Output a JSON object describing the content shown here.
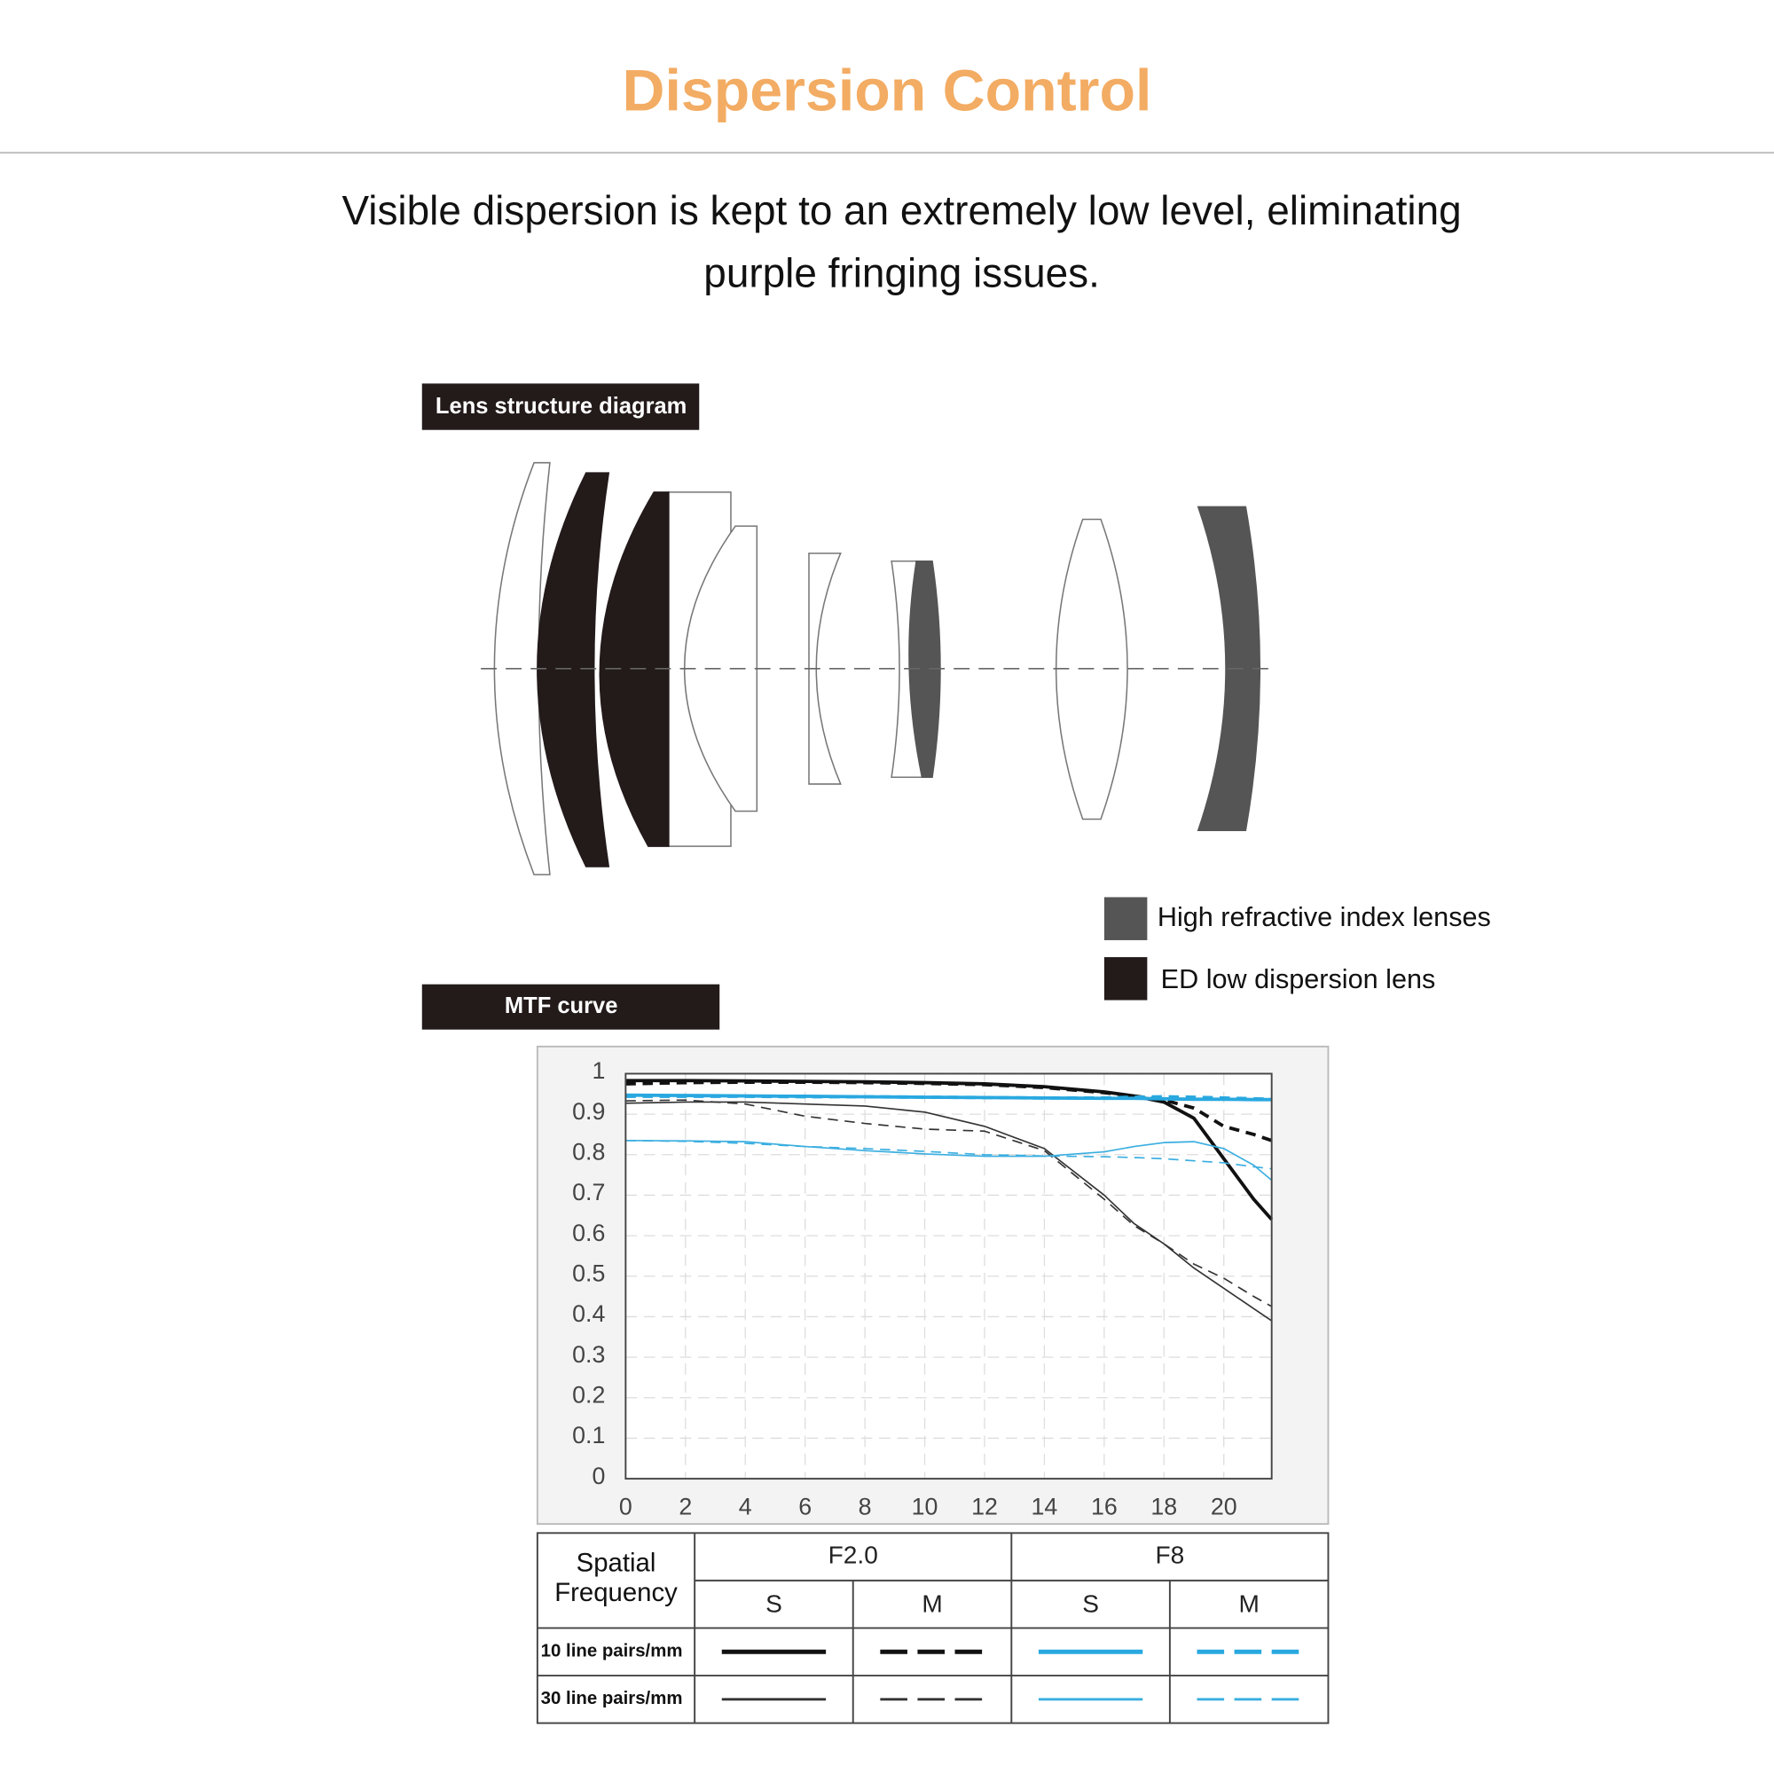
{
  "header": {
    "title": "Dispersion Control",
    "subtitle_lines": [
      "Visible dispersion is kept to an extremely low level, eliminating",
      "purple fringing issues."
    ]
  },
  "lens_diagram": {
    "label": "Lens structure diagram",
    "legend": [
      {
        "label": "High refractive index lenses",
        "color": "#555555"
      },
      {
        "label": "ED low dispersion lens",
        "color": "#231a1a"
      }
    ]
  },
  "mtf_label": "MTF curve",
  "chart_data": {
    "type": "line",
    "x": [
      0,
      2,
      4,
      6,
      8,
      10,
      12,
      14,
      16,
      17,
      18,
      19,
      20,
      21,
      21.6
    ],
    "xlim": [
      0,
      21.6
    ],
    "xticks": [
      0,
      2,
      4,
      6,
      8,
      10,
      12,
      14,
      16,
      18,
      20
    ],
    "ylim": [
      0,
      1
    ],
    "yticks": [
      0,
      0.1,
      0.2,
      0.3,
      0.4,
      0.5,
      0.6,
      0.7,
      0.8,
      0.9,
      1
    ],
    "grid": true,
    "series": [
      {
        "color": "#111111",
        "dash": false,
        "width": 3,
        "values": [
          0.983,
          0.983,
          0.982,
          0.981,
          0.98,
          0.978,
          0.975,
          0.968,
          0.955,
          0.945,
          0.93,
          0.89,
          0.79,
          0.69,
          0.64
        ]
      },
      {
        "color": "#111111",
        "dash": true,
        "width": 3,
        "values": [
          0.975,
          0.978,
          0.979,
          0.979,
          0.978,
          0.976,
          0.973,
          0.966,
          0.953,
          0.945,
          0.935,
          0.915,
          0.87,
          0.85,
          0.835
        ]
      },
      {
        "color": "#29a8e0",
        "dash": false,
        "width": 3,
        "values": [
          0.947,
          0.946,
          0.945,
          0.944,
          0.943,
          0.942,
          0.941,
          0.94,
          0.939,
          0.939,
          0.938,
          0.937,
          0.937,
          0.936,
          0.936
        ]
      },
      {
        "color": "#29a8e0",
        "dash": true,
        "width": 3,
        "values": [
          0.944,
          0.944,
          0.944,
          0.943,
          0.943,
          0.942,
          0.941,
          0.94,
          0.94,
          0.942,
          0.943,
          0.942,
          0.94,
          0.938,
          0.937
        ]
      },
      {
        "color": "#333333",
        "dash": false,
        "width": 1.3,
        "values": [
          0.927,
          0.93,
          0.93,
          0.925,
          0.92,
          0.905,
          0.87,
          0.815,
          0.7,
          0.63,
          0.58,
          0.52,
          0.47,
          0.42,
          0.39
        ]
      },
      {
        "color": "#333333",
        "dash": true,
        "width": 1.3,
        "values": [
          0.933,
          0.935,
          0.925,
          0.895,
          0.877,
          0.863,
          0.858,
          0.81,
          0.69,
          0.625,
          0.58,
          0.53,
          0.495,
          0.45,
          0.425
        ]
      },
      {
        "color": "#3aaee0",
        "dash": false,
        "width": 1.3,
        "values": [
          0.835,
          0.834,
          0.832,
          0.82,
          0.81,
          0.802,
          0.796,
          0.796,
          0.807,
          0.82,
          0.83,
          0.832,
          0.815,
          0.774,
          0.737
        ]
      },
      {
        "color": "#3aaee0",
        "dash": true,
        "width": 1.3,
        "values": [
          0.835,
          0.833,
          0.828,
          0.82,
          0.815,
          0.808,
          0.8,
          0.797,
          0.795,
          0.793,
          0.79,
          0.785,
          0.78,
          0.77,
          0.765
        ]
      }
    ]
  },
  "legend_table": {
    "corner": "Spatial Frequency",
    "apertures": [
      "F2.0",
      "F8"
    ],
    "directions": [
      "S",
      "M",
      "S",
      "M"
    ],
    "rows": [
      "10 line pairs/mm",
      "30 line pairs/mm"
    ]
  }
}
